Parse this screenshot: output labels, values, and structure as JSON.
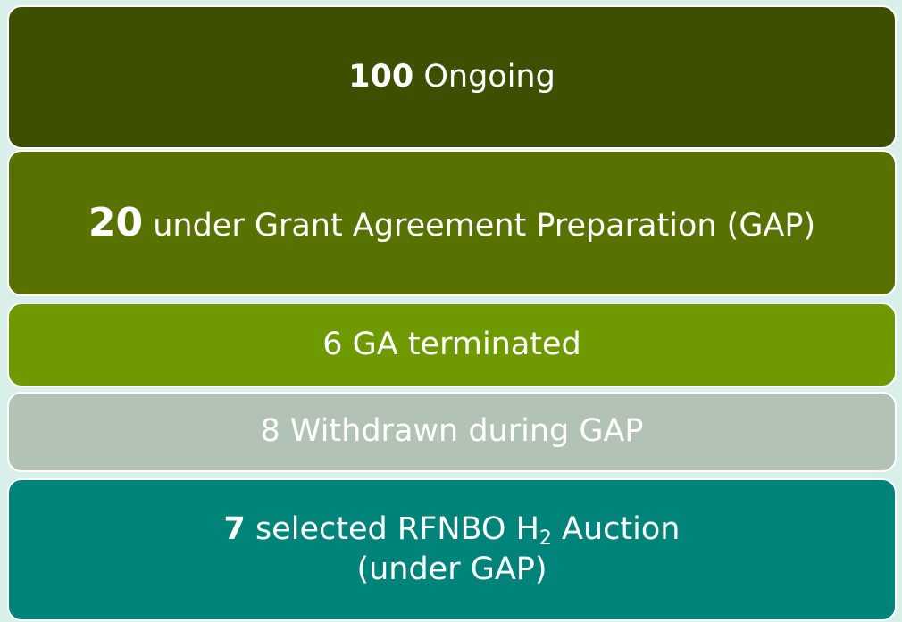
{
  "boxes": [
    {
      "number": 100,
      "label": "Ongoing"
    },
    {
      "number": 20,
      "label": "under Grant Agreement Preparation (GAP)"
    },
    {
      "number": 6,
      "label": "GA terminated"
    },
    {
      "number": 8,
      "label": "Withdrawn during GAP"
    },
    {
      "number": 7,
      "label": "selected RFNBO H",
      "subscript": "2",
      "label_end": "Auction",
      "line2": "(under GAP)"
    }
  ]
}
